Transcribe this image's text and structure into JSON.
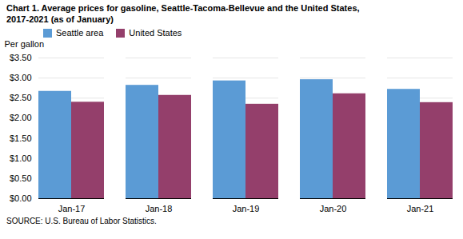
{
  "chart_data": {
    "type": "bar",
    "title": "Chart 1. Average prices for gasoline, Seattle-Tacoma-Bellevue and the United States,",
    "subtitle": "2017-2021  (as of January)",
    "ylabel": "Per gallon",
    "source": "SOURCE: U.S. Bureau of Labor Statistics.",
    "categories": [
      "Jan-17",
      "Jan-18",
      "Jan-19",
      "Jan-20",
      "Jan-21"
    ],
    "series": [
      {
        "name": "Seattle area",
        "color": "#5B9BD5",
        "values": [
          2.67,
          2.82,
          2.93,
          2.96,
          2.72
        ]
      },
      {
        "name": "United States",
        "color": "#943F6B",
        "values": [
          2.4,
          2.57,
          2.35,
          2.61,
          2.39
        ]
      }
    ],
    "ylim": [
      0,
      3.5
    ],
    "yticks": [
      {
        "value": 0.0,
        "label": "$0.00"
      },
      {
        "value": 0.5,
        "label": "$0.50"
      },
      {
        "value": 1.0,
        "label": "$1.00"
      },
      {
        "value": 1.5,
        "label": "$1.50"
      },
      {
        "value": 2.0,
        "label": "$2.00"
      },
      {
        "value": 2.5,
        "label": "$2.50"
      },
      {
        "value": 3.0,
        "label": "$3.00"
      },
      {
        "value": 3.5,
        "label": "$3.50"
      }
    ],
    "grid": true,
    "legend": "upper left"
  }
}
